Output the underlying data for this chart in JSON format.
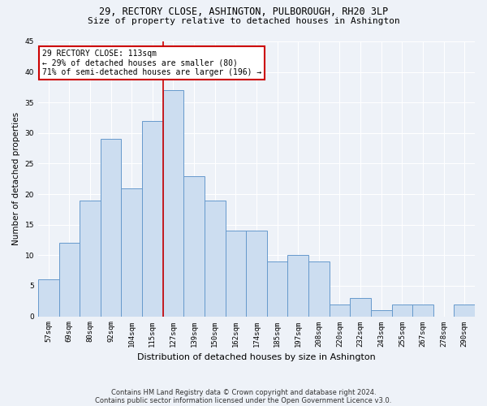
{
  "title1": "29, RECTORY CLOSE, ASHINGTON, PULBOROUGH, RH20 3LP",
  "title2": "Size of property relative to detached houses in Ashington",
  "xlabel": "Distribution of detached houses by size in Ashington",
  "ylabel": "Number of detached properties",
  "bar_labels": [
    "57sqm",
    "69sqm",
    "80sqm",
    "92sqm",
    "104sqm",
    "115sqm",
    "127sqm",
    "139sqm",
    "150sqm",
    "162sqm",
    "174sqm",
    "185sqm",
    "197sqm",
    "208sqm",
    "220sqm",
    "232sqm",
    "243sqm",
    "255sqm",
    "267sqm",
    "278sqm",
    "290sqm"
  ],
  "bar_values": [
    6,
    12,
    19,
    29,
    21,
    32,
    37,
    23,
    19,
    14,
    14,
    9,
    10,
    9,
    2,
    3,
    1,
    2,
    2,
    0,
    2
  ],
  "bar_color": "#ccddf0",
  "bar_edgecolor": "#6699cc",
  "vline_x": 5.5,
  "vline_color": "#cc0000",
  "annotation_title": "29 RECTORY CLOSE: 113sqm",
  "annotation_line1": "← 29% of detached houses are smaller (80)",
  "annotation_line2": "71% of semi-detached houses are larger (196) →",
  "annotation_box_color": "#ffffff",
  "annotation_box_edgecolor": "#cc0000",
  "ylim": [
    0,
    45
  ],
  "yticks": [
    0,
    5,
    10,
    15,
    20,
    25,
    30,
    35,
    40,
    45
  ],
  "footer1": "Contains HM Land Registry data © Crown copyright and database right 2024.",
  "footer2": "Contains public sector information licensed under the Open Government Licence v3.0.",
  "bg_color": "#eef2f8",
  "plot_bg_color": "#eef2f8",
  "title1_fontsize": 8.5,
  "title2_fontsize": 8.0,
  "xlabel_fontsize": 8.0,
  "ylabel_fontsize": 7.5,
  "tick_fontsize": 6.5,
  "annot_fontsize": 7.0,
  "footer_fontsize": 6.0
}
